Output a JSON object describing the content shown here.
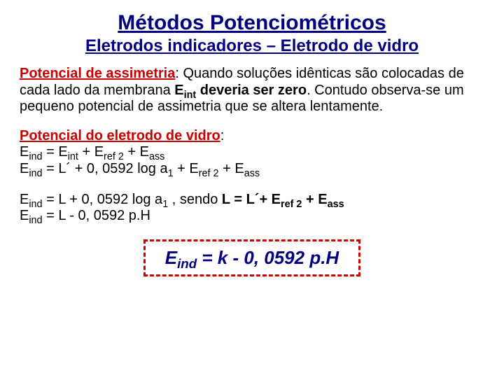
{
  "colors": {
    "heading": "#000080",
    "label": "#cc0000",
    "body": "#000000",
    "box_border": "#cc0000",
    "box_text": "#000080",
    "background": "#ffffff"
  },
  "typography": {
    "title_fontsize": 30,
    "subtitle_fontsize": 24,
    "body_fontsize": 20,
    "box_fontsize": 26,
    "font_family": "Comic Sans MS"
  },
  "title": "Métodos Potenciométricos",
  "subtitle": "Eletrodos indicadores – Eletrodo de vidro",
  "section1": {
    "label": "Potencial de assimetria",
    "text_before_bold": ": Quando soluções idênticas são colocadas de cada lado da membrana ",
    "bold_part_prefix": "E",
    "bold_part_sub": "int",
    "bold_part_suffix": " deveria ser zero",
    "text_after_bold": ". Contudo observa-se um pequeno potencial de assimetria que se altera lentamente."
  },
  "section2": {
    "label": "Potencial do eletrodo de vidro",
    "colon": ":",
    "eq1_lhs": "E",
    "eq1_lhs_sub": "ind",
    "eq1_eq": " = E",
    "eq1_t1_sub": "int",
    "eq1_p": " + E",
    "eq1_t2_sub": "ref 2",
    "eq1_p2": " + E",
    "eq1_t3_sub": "ass",
    "eq2_lhs": "E",
    "eq2_lhs_sub": "ind",
    "eq2_body_a": " = L´ + 0, 0592 log a",
    "eq2_sub1": "1",
    "eq2_body_b": " + E",
    "eq2_sub2": "ref 2",
    "eq2_body_c": " + E",
    "eq2_sub3": "ass"
  },
  "section3": {
    "eq3_lhs": "E",
    "eq3_lhs_sub": "ind",
    "eq3_body_a": " = L + 0, 0592 log a",
    "eq3_sub1": "1",
    "eq3_body_b": " , sendo ",
    "eq3_bold_a": "L = L´+ E",
    "eq3_bold_sub1": "ref 2",
    "eq3_bold_b": " + E",
    "eq3_bold_sub2": "ass",
    "eq4_lhs": "E",
    "eq4_lhs_sub": "ind",
    "eq4_body": " = L - 0, 0592 p.H"
  },
  "boxed": {
    "lhs": "E",
    "lhs_sub": "ind",
    "rhs": " = k - 0, 0592 p.H"
  }
}
